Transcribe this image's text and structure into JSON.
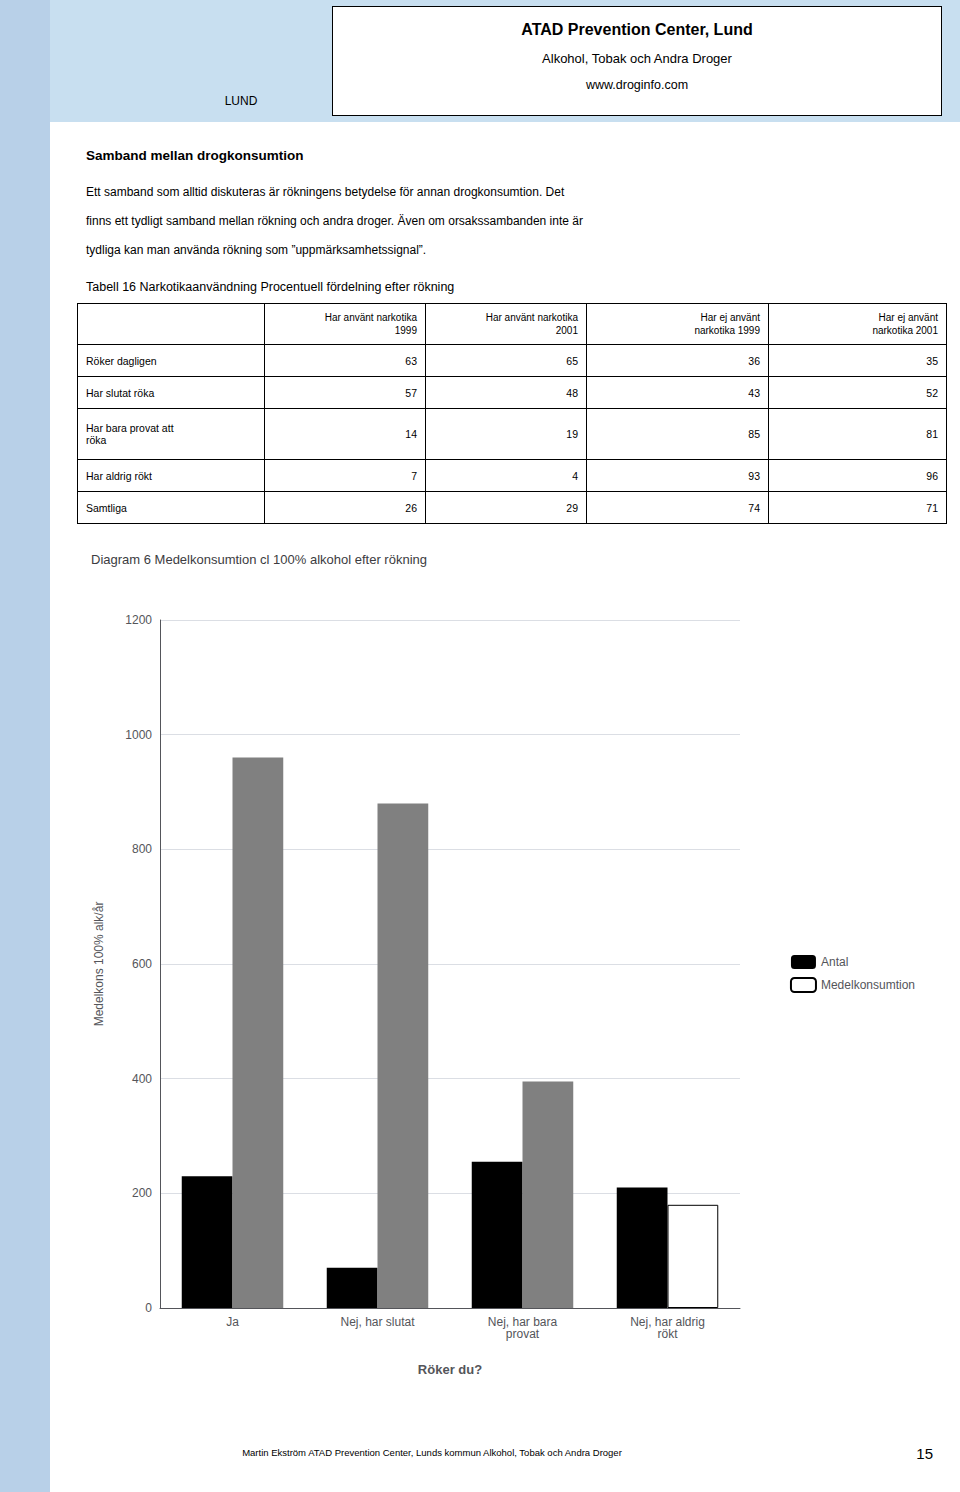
{
  "sidebar_color": "#b8d0e8",
  "header": {
    "color": "#c8dff0",
    "title": "ATAD Prevention Center, Lund",
    "subtitle": "Alkohol, Tobak och Andra Droger",
    "url": "www.droginfo.com",
    "logo_text": "LUND"
  },
  "heading": "Samband mellan drogkonsumtion",
  "paragraph": [
    "Ett samband som alltid diskuteras är rökningens betydelse för annan drogkonsumtion. Det",
    "finns ett tydligt samband mellan rökning och andra droger. Även om orsakssambanden inte är",
    "tydliga kan man använda rökning som ”uppmärksamhetssignal”."
  ],
  "table": {
    "title": "Tabell 16 Narkotikaanvändning Procentuell fördelning efter rökning",
    "columns": [
      "Har använt narkotika\n1999",
      "Har använt narkotika\n2001",
      "Har ej använt\nnarkotika 1999",
      "Har ej använt\nnarkotika 2001"
    ],
    "rows": [
      {
        "label": "Röker dagligen",
        "values": [
          63,
          65,
          36,
          35
        ]
      },
      {
        "label": "Har slutat röka",
        "values": [
          57,
          48,
          43,
          52
        ]
      },
      {
        "label": "Har bara provat att\nröka",
        "values": [
          14,
          19,
          85,
          81
        ]
      },
      {
        "label": "Har aldrig rökt",
        "values": [
          7,
          4,
          93,
          96
        ]
      },
      {
        "label": "Samtliga",
        "values": [
          26,
          29,
          74,
          71
        ]
      }
    ]
  },
  "chart_data": {
    "type": "bar",
    "title": "Diagram 6 Medelkonsumtion cl 100% alkohol efter rökning",
    "categories": [
      "Ja",
      "Nej, har slutat",
      "Nej, har bara\nprovat",
      "Nej, har aldrig\nrökt"
    ],
    "series": [
      {
        "name": "Antal",
        "color": "#000000",
        "values": [
          230,
          70,
          255,
          210
        ]
      },
      {
        "name": "Medelkonsumtion",
        "colors": [
          "#808080",
          "#808080",
          "#808080",
          "#ffffff"
        ],
        "values": [
          960,
          880,
          395,
          180
        ]
      }
    ],
    "xlabel": "Röker du?",
    "ylabel": "Medelkons 100% alk/år",
    "ylim": [
      0,
      1200
    ],
    "yticks": [
      0,
      200,
      400,
      600,
      800,
      1000,
      1200
    ],
    "grid": true,
    "legend": "right"
  },
  "footer": {
    "text": "Martin Ekström  ATAD Prevention Center, Lunds kommun  Alkohol, Tobak och Andra Droger",
    "page_number": "15"
  }
}
